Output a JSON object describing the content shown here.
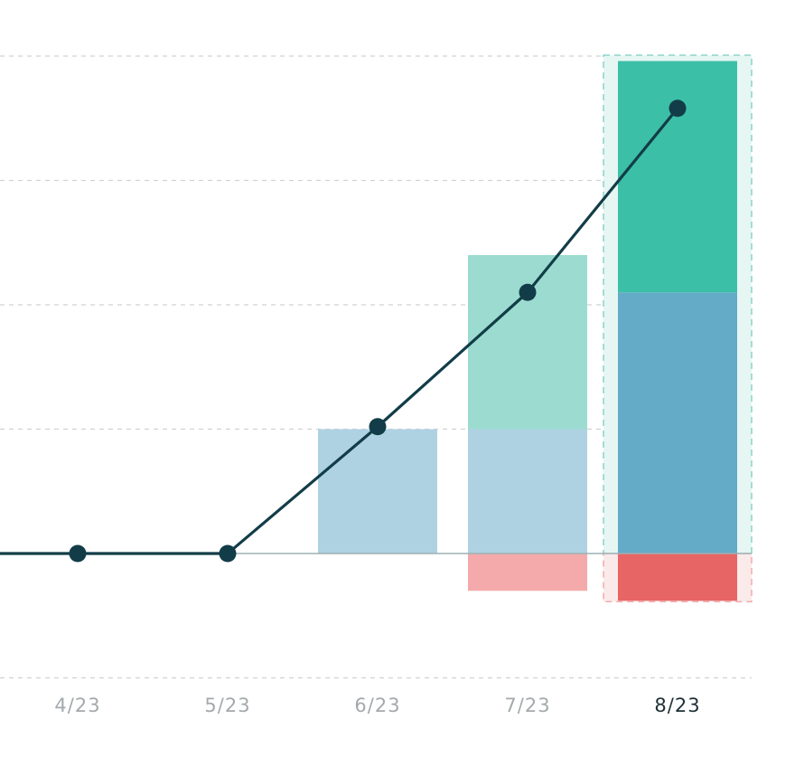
{
  "chart_data": {
    "type": "bar",
    "title": "",
    "xlabel": "",
    "ylabel": "",
    "categories": [
      "4/23",
      "5/23",
      "6/23",
      "7/23",
      "8/23"
    ],
    "highlighted_category": "8/23",
    "ylim": [
      -1,
      4
    ],
    "grid": "horizontal dashed",
    "y_ticks": [
      -1,
      0,
      1,
      2,
      3,
      4
    ],
    "series": [
      {
        "values": [
          0,
          0,
          1.0,
          1.0,
          2.1
        ],
        "color": "#64abc7",
        "faded_color": "#aed2e2"
      },
      {
        "values": [
          0,
          0,
          0,
          1.4,
          1.86
        ],
        "color": "#3cbfa7",
        "faded_color": "#9cdcd0"
      },
      {
        "values": [
          0,
          0,
          0,
          -0.3,
          -0.38
        ],
        "color": "#e86565",
        "faded_color": "#f4aaaa"
      }
    ],
    "line": {
      "values": [
        0,
        0,
        1.02,
        2.1,
        3.58
      ],
      "color": "#123d48"
    },
    "highlight_box_colors": {
      "positive": "#e6f6f3",
      "positive_border": "#7ccdbf",
      "negative": "#fbeaea",
      "negative_border": "#f0a0a0"
    }
  }
}
